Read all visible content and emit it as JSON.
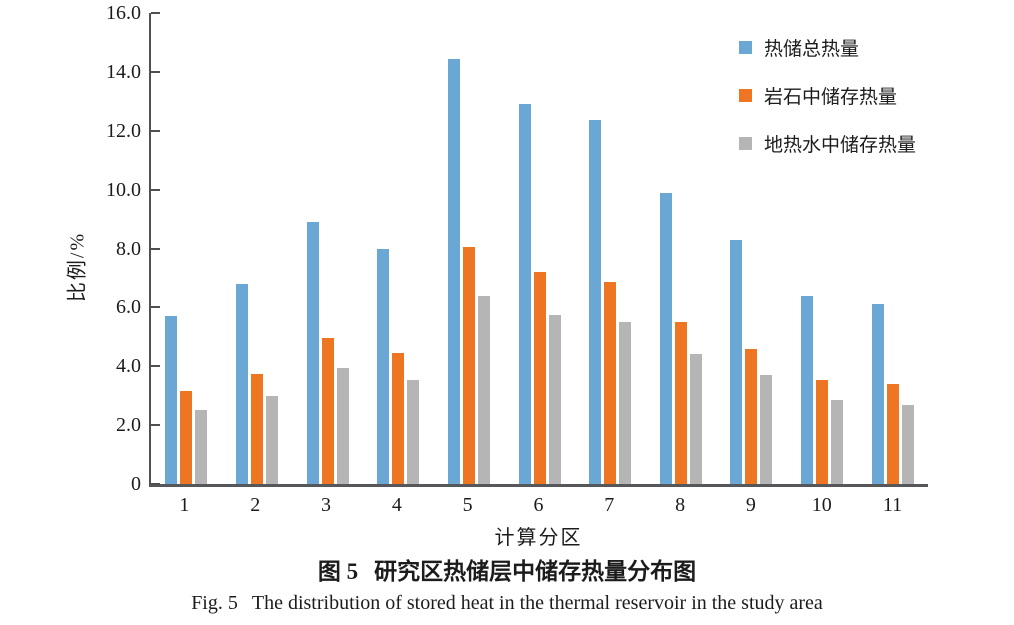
{
  "chart_data": {
    "type": "bar",
    "title": "图 5 研究区热储层中储存热量分布图",
    "xlabel": "计算分区",
    "ylabel": "比例/%",
    "ylim": [
      0,
      16
    ],
    "ytick_step": 2,
    "ytick_labels": [
      "0",
      "2.0",
      "4.0",
      "6.0",
      "8.0",
      "10.0",
      "12.0",
      "14.0",
      "16.0"
    ],
    "grid": false,
    "legend_position": "top-right",
    "categories": [
      "1",
      "2",
      "3",
      "4",
      "5",
      "6",
      "7",
      "8",
      "9",
      "10",
      "11"
    ],
    "series": [
      {
        "name": "热储总热量",
        "color": "#6AA7D4",
        "values": [
          5.7,
          6.8,
          8.9,
          8.0,
          14.45,
          12.9,
          12.35,
          9.9,
          8.3,
          6.4,
          6.1
        ]
      },
      {
        "name": "岩石中储存热量",
        "color": "#EE7623",
        "values": [
          3.15,
          3.75,
          4.95,
          4.45,
          8.05,
          7.2,
          6.85,
          5.5,
          4.6,
          3.55,
          3.4
        ]
      },
      {
        "name": "地热水中储存热量",
        "color": "#B5B5B5",
        "values": [
          2.5,
          3.0,
          3.95,
          3.55,
          6.4,
          5.75,
          5.5,
          4.4,
          3.7,
          2.85,
          2.7
        ]
      }
    ],
    "axis_color": "#4f5052"
  },
  "y_axis_label": "比例/%",
  "x_axis_title": "计算分区",
  "captions": {
    "zh_label": "图 5",
    "zh_text": "研究区热储层中储存热量分布图",
    "en_label": "Fig. 5",
    "en_text": "The distribution of stored heat in the thermal reservoir in the study area"
  }
}
